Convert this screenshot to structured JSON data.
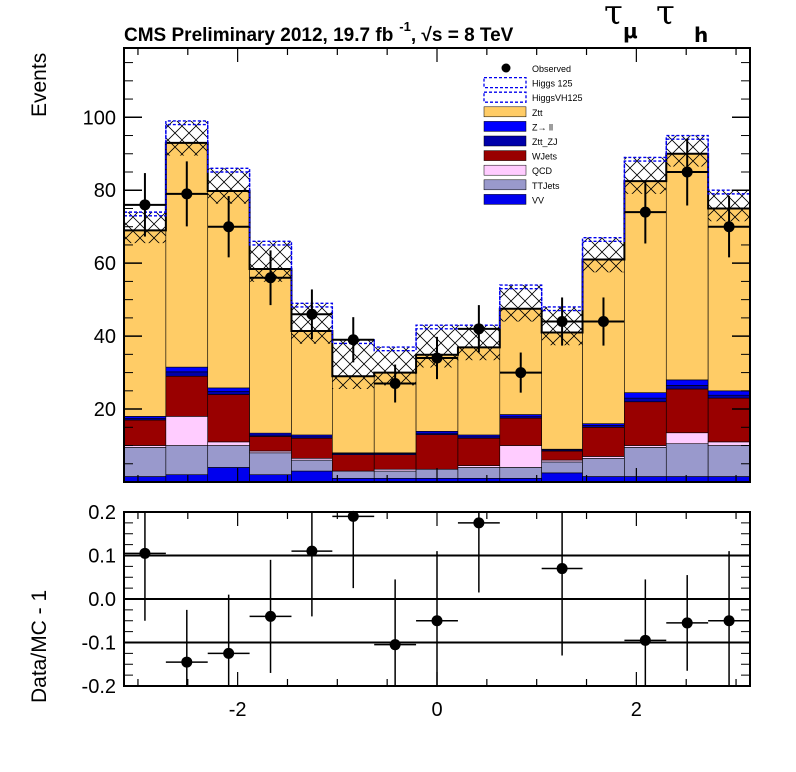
{
  "chart_data": {
    "type": "bar",
    "subtype": "stacked-histogram-with-ratio",
    "title": "CMS Preliminary 2012, 19.7 fb",
    "title_sup": "-1",
    "title_tail": ", √s = 8 TeV",
    "channel": {
      "tau1": "τ",
      "sub1": "μ",
      "tau2": "τ",
      "sub2": "h"
    },
    "xlim": [
      -3.14,
      3.14
    ],
    "ylim": [
      0,
      119
    ],
    "ylabel": "Events",
    "ratio_ylabel": "Data/MC - 1",
    "ratio_ylim": [
      -0.2,
      0.2
    ],
    "ratio_ref_lines": [
      0.1,
      0,
      -0.1
    ],
    "x_ticks": [
      "-2",
      "0",
      "2"
    ],
    "x_tick_values": [
      -2,
      0,
      2
    ],
    "y_ticks": [
      "20",
      "40",
      "60",
      "80",
      "100"
    ],
    "y_tick_values": [
      20,
      40,
      60,
      80,
      100
    ],
    "ratio_ticks": [
      "0.2",
      "0.1",
      "0.0",
      "-0.1",
      "-0.2"
    ],
    "ratio_tick_values": [
      0.2,
      0.1,
      0,
      -0.1,
      -0.2
    ],
    "bin_edges": [
      -3.14,
      -2.72,
      -2.3,
      -1.88,
      -1.46,
      -1.05,
      -0.63,
      -0.21,
      0.21,
      0.63,
      1.05,
      1.46,
      1.88,
      2.3,
      2.72,
      3.14
    ],
    "stack_order": [
      "VV",
      "TTJets",
      "QCD",
      "WJets",
      "Ztt_ZJ",
      "Z→ ll",
      "Ztt"
    ],
    "series": [
      {
        "name": "VV",
        "color": "#0000ee",
        "values": [
          1.5,
          2,
          4,
          2,
          3,
          1,
          1,
          1,
          1,
          1,
          2.5,
          1.5,
          1.5,
          1.5,
          1.5
        ]
      },
      {
        "name": "TTJets",
        "color": "#9999cc",
        "values": [
          8,
          8,
          6,
          6,
          3,
          2,
          2,
          2.5,
          3,
          3,
          3,
          5,
          8,
          9,
          8.5
        ]
      },
      {
        "name": "QCD",
        "color": "#ffccff",
        "values": [
          0.5,
          8,
          1,
          0.5,
          0.5,
          0,
          0.5,
          0,
          0.5,
          6,
          0.5,
          0.5,
          0.5,
          3,
          1
        ]
      },
      {
        "name": "WJets",
        "color": "#990000",
        "values": [
          7,
          11,
          13,
          4,
          5.5,
          4.5,
          4,
          9.5,
          7.5,
          7.5,
          2.5,
          8,
          12,
          12,
          12
        ]
      },
      {
        "name": "Ztt_ZJ",
        "color": "#0000aa",
        "values": [
          0.4,
          1.2,
          0.8,
          0.4,
          0.4,
          0.3,
          0.3,
          0.4,
          0.4,
          0.4,
          0.3,
          0.5,
          1,
          1,
          0.8
        ]
      },
      {
        "name": "Z→ ll",
        "color": "#0000ff",
        "values": [
          0.6,
          1.3,
          1,
          0.5,
          0.5,
          0.2,
          0.2,
          0.5,
          0.5,
          0.6,
          0.2,
          0.5,
          1.5,
          1.5,
          1.2
        ]
      },
      {
        "name": "Ztt",
        "color": "#ffcc66",
        "values": [
          51,
          61.5,
          54,
          45,
          28.5,
          21,
          22,
          21,
          24,
          29,
          32,
          45,
          58,
          62,
          50
        ]
      }
    ],
    "higgs_total": [
      74,
      99,
      86,
      66,
      49,
      39,
      37,
      43,
      43,
      54,
      48,
      67,
      89,
      95,
      80
    ],
    "higgsvh_total": [
      73,
      98,
      85,
      65,
      48,
      38,
      36,
      42,
      42,
      53,
      47,
      66,
      88,
      94,
      79
    ],
    "observed": {
      "name": "Observed",
      "values": [
        76,
        79,
        70,
        56,
        46,
        39,
        27,
        34,
        42,
        30,
        44,
        44,
        74,
        85,
        70
      ],
      "errors": [
        8.7,
        8.9,
        8.4,
        7.5,
        6.8,
        6.2,
        5.2,
        5.8,
        6.5,
        5.5,
        6.6,
        6.6,
        8.6,
        9.2,
        8.4
      ]
    },
    "ratio": {
      "values": [
        0.105,
        -0.145,
        -0.125,
        -0.04,
        0.11,
        0.19,
        -0.105,
        -0.05,
        0.175,
        null,
        0.07,
        null,
        -0.095,
        -0.055,
        -0.05
      ],
      "errors": [
        0.155,
        0.12,
        0.135,
        0.13,
        0.15,
        0.165,
        0.15,
        0.16,
        0.16,
        null,
        0.2,
        null,
        0.14,
        0.11,
        0.16
      ]
    },
    "legend": [
      {
        "label": "Observed",
        "kind": "marker"
      },
      {
        "label": "Higgs 125",
        "kind": "dashed",
        "color": "#0000ee"
      },
      {
        "label": "HiggsVH125",
        "kind": "dashed",
        "color": "#0000ee"
      },
      {
        "label": "Ztt",
        "kind": "fill",
        "color": "#ffcc66"
      },
      {
        "label": "Z→ ll",
        "kind": "fill",
        "color": "#0000ff"
      },
      {
        "label": "Ztt_ZJ",
        "kind": "fill",
        "color": "#0000aa"
      },
      {
        "label": "WJets",
        "kind": "fill",
        "color": "#990000"
      },
      {
        "label": "QCD",
        "kind": "fill",
        "color": "#ffccff"
      },
      {
        "label": "TTJets",
        "kind": "fill",
        "color": "#9999cc"
      },
      {
        "label": "VV",
        "kind": "fill",
        "color": "#0000ee"
      }
    ],
    "legend_position": "top-right"
  }
}
